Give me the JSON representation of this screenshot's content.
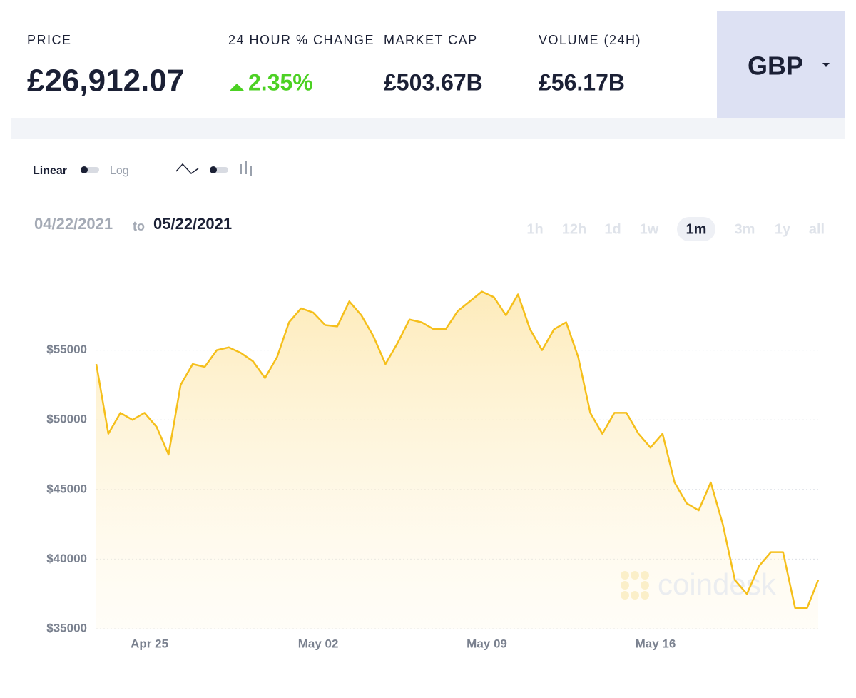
{
  "header": {
    "stats": [
      {
        "label": "PRICE",
        "value": "£26,912.07"
      },
      {
        "label": "24 HOUR % CHANGE",
        "value": "2.35%"
      },
      {
        "label": "MARKET CAP",
        "value": "£503.67B"
      },
      {
        "label": "VOLUME (24H)",
        "value": "£56.17B"
      }
    ],
    "currency": "GBP"
  },
  "controls": {
    "scale_options": [
      "Linear",
      "Log"
    ],
    "date_from": "04/22/2021",
    "date_sep": "to",
    "date_to": "05/22/2021",
    "ranges": [
      "1h",
      "12h",
      "1d",
      "1w",
      "1m",
      "3m",
      "1y",
      "all"
    ],
    "active_range": 4
  },
  "watermark": "coindesk",
  "chart_data": {
    "type": "line",
    "color": "#f5bf1b",
    "x": [
      "2021-04-22T19:00",
      "2021-04-23T07:00",
      "2021-04-23T19:00",
      "2021-04-24T07:00",
      "2021-04-24T19:00",
      "2021-04-25T07:00",
      "2021-04-25T19:00",
      "2021-04-26T07:00",
      "2021-04-26T19:00",
      "2021-04-27T07:00",
      "2021-04-27T19:00",
      "2021-04-28T07:00",
      "2021-04-28T19:00",
      "2021-04-29T07:00",
      "2021-04-29T19:00",
      "2021-04-30T07:00",
      "2021-04-30T19:00",
      "2021-05-01T07:00",
      "2021-05-01T19:00",
      "2021-05-02T07:00",
      "2021-05-02T19:00",
      "2021-05-03T07:00",
      "2021-05-03T19:00",
      "2021-05-04T07:00",
      "2021-05-04T19:00",
      "2021-05-05T07:00",
      "2021-05-05T19:00",
      "2021-05-06T07:00",
      "2021-05-06T19:00",
      "2021-05-07T07:00",
      "2021-05-07T19:00",
      "2021-05-08T07:00",
      "2021-05-08T19:00",
      "2021-05-09T07:00",
      "2021-05-09T19:00",
      "2021-05-10T07:00",
      "2021-05-10T19:00",
      "2021-05-11T07:00",
      "2021-05-11T19:00",
      "2021-05-12T07:00",
      "2021-05-12T19:00",
      "2021-05-13T07:00",
      "2021-05-13T19:00",
      "2021-05-14T07:00",
      "2021-05-14T19:00",
      "2021-05-15T07:00",
      "2021-05-15T19:00",
      "2021-05-16T07:00",
      "2021-05-16T19:00",
      "2021-05-17T07:00",
      "2021-05-17T19:00",
      "2021-05-18T07:00",
      "2021-05-18T19:00",
      "2021-05-19T07:00",
      "2021-05-19T19:00",
      "2021-05-20T07:00",
      "2021-05-20T19:00",
      "2021-05-21T07:00",
      "2021-05-21T19:00",
      "2021-05-22T07:00",
      "2021-05-22T18:00"
    ],
    "values": [
      54000,
      49000,
      50500,
      50000,
      50500,
      49500,
      47500,
      52500,
      54000,
      53800,
      55000,
      55200,
      54800,
      54200,
      53000,
      54500,
      57000,
      58000,
      57700,
      56800,
      56700,
      58500,
      57500,
      56000,
      54000,
      55500,
      57200,
      57000,
      56500,
      56500,
      57800,
      58500,
      59200,
      58800,
      57500,
      59000,
      56500,
      55000,
      56500,
      57000,
      54500,
      50500,
      49000,
      50500,
      50500,
      49000,
      48000,
      49000,
      45500,
      44000,
      43500,
      45500,
      42500,
      38500,
      37500,
      39500,
      40500,
      40500,
      36500,
      36500,
      38500
    ],
    "xlim": [
      "2021-04-22T19:00",
      "2021-05-22T18:00"
    ],
    "xticks": [
      {
        "value": "2021-04-25T00:00",
        "label": "Apr 25"
      },
      {
        "value": "2021-05-02T00:00",
        "label": "May 02"
      },
      {
        "value": "2021-05-09T00:00",
        "label": "May 09"
      },
      {
        "value": "2021-05-16T00:00",
        "label": "May 16"
      }
    ],
    "ylim": [
      35000,
      60000
    ],
    "yticks": [
      {
        "value": 35000,
        "label": "$35000"
      },
      {
        "value": 40000,
        "label": "$40000"
      },
      {
        "value": 45000,
        "label": "$45000"
      },
      {
        "value": 50000,
        "label": "$50000"
      },
      {
        "value": 55000,
        "label": "$55000"
      }
    ],
    "grid": true
  }
}
